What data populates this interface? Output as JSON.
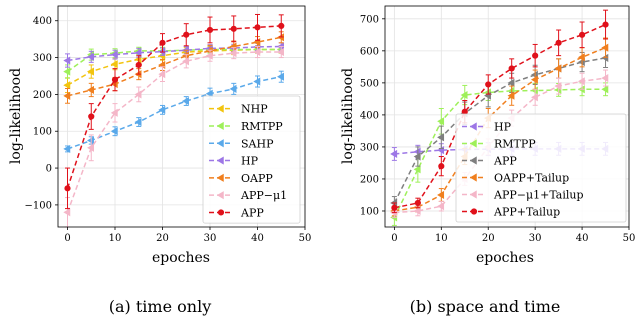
{
  "chart_data": [
    {
      "type": "line",
      "caption": "(a) time only",
      "xlabel": "epoches",
      "ylabel": "log-likelihood",
      "xlim": [
        -2,
        50
      ],
      "ylim": [
        -160,
        440
      ],
      "xticks": [
        0,
        10,
        20,
        30,
        40,
        50
      ],
      "yticks": [
        -100,
        0,
        100,
        200,
        300,
        400
      ],
      "ytick_labels": [
        "−100",
        "0",
        "100",
        "200",
        "300",
        "400"
      ],
      "legend_position": "lower-right",
      "x": [
        0,
        5,
        10,
        15,
        20,
        25,
        30,
        35,
        40,
        45
      ],
      "series": [
        {
          "name": "NHP",
          "color": "#f2c40f",
          "dash": "5,3",
          "marker": "triangle",
          "values": [
            225,
            262,
            282,
            295,
            305,
            315,
            318,
            320,
            322,
            322
          ],
          "errors": [
            20,
            18,
            15,
            15,
            12,
            12,
            12,
            12,
            10,
            10
          ]
        },
        {
          "name": "RMTPP",
          "color": "#9ef05a",
          "dash": "5,3",
          "marker": "triangle",
          "values": [
            262,
            308,
            312,
            318,
            318,
            320,
            322,
            322,
            322,
            322
          ],
          "errors": [
            18,
            15,
            12,
            10,
            10,
            10,
            10,
            10,
            10,
            10
          ]
        },
        {
          "name": "SAHP",
          "color": "#5aa9ea",
          "dash": "5,3",
          "marker": "triangle",
          "values": [
            52,
            75,
            100,
            125,
            158,
            182,
            202,
            215,
            235,
            248
          ],
          "errors": [
            8,
            10,
            12,
            12,
            12,
            12,
            15,
            15,
            15,
            15
          ]
        },
        {
          "name": "HP",
          "color": "#9d77e6",
          "dash": "5,3",
          "marker": "triangle",
          "values": [
            292,
            302,
            308,
            313,
            316,
            320,
            325,
            326,
            329,
            330
          ],
          "errors": [
            18,
            15,
            12,
            12,
            10,
            10,
            10,
            10,
            10,
            10
          ]
        },
        {
          "name": "OAPP",
          "color": "#f07f1e",
          "dash": "5,3",
          "marker": "triangle",
          "values": [
            196,
            212,
            228,
            255,
            280,
            305,
            318,
            330,
            342,
            355
          ],
          "errors": [
            20,
            18,
            18,
            15,
            15,
            15,
            15,
            15,
            15,
            15
          ]
        },
        {
          "name": "APP−μ1",
          "color": "#f4b6c8",
          "dash": "5,3",
          "marker": "triangle",
          "values": [
            -120,
            55,
            150,
            200,
            255,
            290,
            305,
            312,
            315,
            315
          ],
          "errors": [
            40,
            35,
            25,
            20,
            20,
            18,
            15,
            15,
            15,
            15
          ]
        },
        {
          "name": "APP",
          "color": "#e0111b",
          "dash": "5,3",
          "marker": "circle",
          "values": [
            -55,
            140,
            240,
            280,
            340,
            362,
            375,
            378,
            382,
            386
          ],
          "errors": [
            55,
            35,
            30,
            25,
            25,
            30,
            35,
            35,
            35,
            30
          ]
        }
      ]
    },
    {
      "type": "line",
      "caption": "(b) space and time",
      "xlabel": "epoches",
      "ylabel": "log-likelihood",
      "xlim": [
        -2,
        50
      ],
      "ylim": [
        50,
        740
      ],
      "xticks": [
        0,
        10,
        20,
        30,
        40,
        50
      ],
      "yticks": [
        100,
        200,
        300,
        400,
        500,
        600,
        700
      ],
      "ytick_labels": [
        "100",
        "200",
        "300",
        "400",
        "500",
        "600",
        "700"
      ],
      "legend_position": "lower-right",
      "x": [
        0,
        5,
        10,
        15,
        20,
        25,
        30,
        35,
        40,
        45
      ],
      "series": [
        {
          "name": "HP",
          "color": "#9d77e6",
          "dash": "5,3",
          "marker": "triangle",
          "values": [
            278,
            285,
            290,
            292,
            293,
            294,
            294,
            294,
            294,
            294
          ],
          "errors": [
            20,
            20,
            20,
            20,
            20,
            20,
            20,
            20,
            20,
            20
          ]
        },
        {
          "name": "RMTPP",
          "color": "#9ef05a",
          "dash": "5,3",
          "marker": "triangle",
          "values": [
            80,
            230,
            380,
            462,
            470,
            475,
            476,
            478,
            480,
            480
          ],
          "errors": [
            25,
            40,
            40,
            30,
            25,
            22,
            22,
            20,
            20,
            20
          ]
        },
        {
          "name": "APP",
          "color": "#7f7f7f",
          "dash": "5,3",
          "marker": "triangle",
          "values": [
            125,
            270,
            330,
            405,
            460,
            500,
            525,
            545,
            565,
            578
          ],
          "errors": [
            20,
            30,
            35,
            35,
            35,
            30,
            30,
            30,
            30,
            30
          ]
        },
        {
          "name": "OAPP+Tailup",
          "color": "#f07f1e",
          "dash": "5,3",
          "marker": "triangle",
          "values": [
            100,
            112,
            150,
            270,
            390,
            460,
            510,
            545,
            580,
            610
          ],
          "errors": [
            15,
            15,
            20,
            25,
            30,
            30,
            30,
            30,
            30,
            30
          ]
        },
        {
          "name": "APP−μ1+Tailup",
          "color": "#f4b6c8",
          "dash": "5,3",
          "marker": "triangle",
          "values": [
            95,
            100,
            115,
            200,
            300,
            390,
            455,
            490,
            505,
            515
          ],
          "errors": [
            15,
            15,
            15,
            20,
            25,
            25,
            25,
            25,
            25,
            25
          ]
        },
        {
          "name": "APP+Tailup",
          "color": "#e0111b",
          "dash": "5,3",
          "marker": "circle",
          "values": [
            110,
            125,
            240,
            410,
            495,
            545,
            585,
            625,
            650,
            682
          ],
          "errors": [
            15,
            15,
            30,
            35,
            30,
            30,
            35,
            40,
            40,
            45
          ]
        }
      ]
    }
  ]
}
